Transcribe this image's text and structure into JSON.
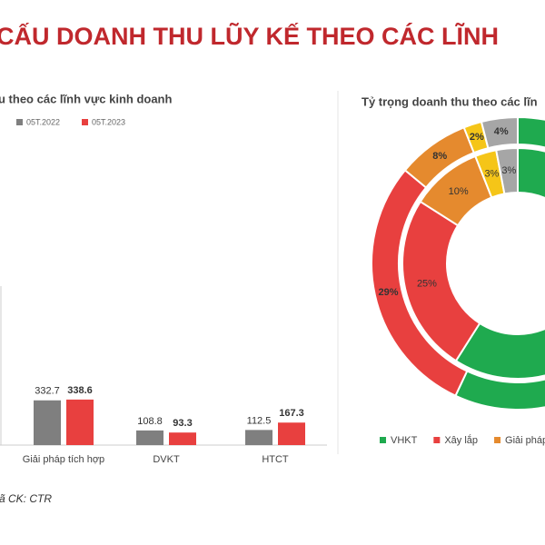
{
  "header": {
    "title": "CẤU DOANH THU LŨY KẾ THEO CÁC LĨNH",
    "footer": "ã CK: CTR"
  },
  "chart_data": [
    {
      "type": "bar",
      "title": "u theo các lĩnh vực kinh doanh",
      "categories": [
        "Giải pháp tích hợp",
        "DVKT",
        "HTCT"
      ],
      "series": [
        {
          "name": "05T.2022",
          "color": "#7f7f7f",
          "values": [
            332.7,
            108.8,
            112.5
          ]
        },
        {
          "name": "05T.2023",
          "color": "#e8403f",
          "values": [
            338.6,
            93.3,
            167.3
          ]
        }
      ]
    },
    {
      "type": "donut",
      "title": "Tỷ trọng doanh thu theo các lĩn",
      "categories": [
        "VHKT",
        "Xây lắp",
        "Giải pháp",
        null,
        null
      ],
      "colors": [
        "#1faa4f",
        "#e8403f",
        "#e58a2e",
        "#f5c518",
        "#a6a6a6"
      ],
      "series": [
        {
          "values": [
            57,
            29,
            8,
            2,
            4
          ],
          "value_labels": [
            null,
            "29%",
            "8%",
            "2%",
            "4%"
          ]
        },
        {
          "values": [
            59,
            25,
            10,
            3,
            3
          ],
          "value_labels": [
            null,
            "25%",
            "10%",
            "3%",
            "3%"
          ]
        }
      ]
    }
  ]
}
